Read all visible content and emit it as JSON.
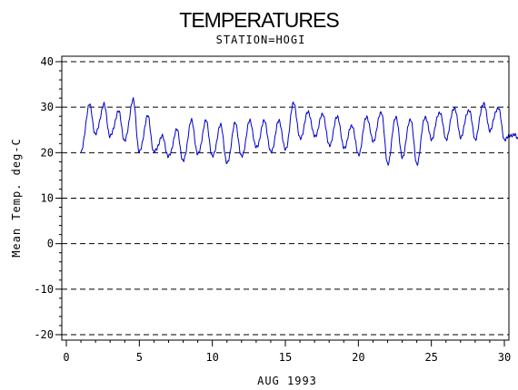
{
  "chart_data": {
    "type": "line",
    "title": "TEMPERATURES",
    "subtitle": "STATION=HOGI",
    "xlabel": "AUG 1993",
    "ylabel": "Mean Temp. deg-C",
    "xlim": [
      0,
      30
    ],
    "ylim": [
      -20,
      40
    ],
    "x_ticks": [
      "0",
      "5",
      "10",
      "15",
      "20",
      "25",
      "30"
    ],
    "y_ticks": [
      "-20",
      "-10",
      "0",
      "10",
      "20",
      "30",
      "40"
    ],
    "grid": "horizontal dashed",
    "series_color": "#0000cc",
    "daily": [
      {
        "day": 1,
        "min": 20,
        "max": 30.5
      },
      {
        "day": 2,
        "min": 24,
        "max": 30.5
      },
      {
        "day": 3,
        "min": 23.5,
        "max": 29
      },
      {
        "day": 4,
        "min": 22.5,
        "max": 31.5
      },
      {
        "day": 5,
        "min": 20,
        "max": 28
      },
      {
        "day": 6,
        "min": 20,
        "max": 23.5
      },
      {
        "day": 7,
        "min": 19,
        "max": 25
      },
      {
        "day": 8,
        "min": 18,
        "max": 27
      },
      {
        "day": 9,
        "min": 19.5,
        "max": 27
      },
      {
        "day": 10,
        "min": 19,
        "max": 26
      },
      {
        "day": 11,
        "min": 17.5,
        "max": 26.5
      },
      {
        "day": 12,
        "min": 19,
        "max": 27
      },
      {
        "day": 13,
        "min": 21,
        "max": 27
      },
      {
        "day": 14,
        "min": 20,
        "max": 27
      },
      {
        "day": 15,
        "min": 20.5,
        "max": 31
      },
      {
        "day": 16,
        "min": 23,
        "max": 29
      },
      {
        "day": 17,
        "min": 23.5,
        "max": 28.5
      },
      {
        "day": 18,
        "min": 21.5,
        "max": 28
      },
      {
        "day": 19,
        "min": 21,
        "max": 26
      },
      {
        "day": 20,
        "min": 19.5,
        "max": 28
      },
      {
        "day": 21,
        "min": 22.5,
        "max": 29
      },
      {
        "day": 22,
        "min": 17.5,
        "max": 28
      },
      {
        "day": 23,
        "min": 19,
        "max": 27.5
      },
      {
        "day": 24,
        "min": 17.5,
        "max": 28
      },
      {
        "day": 25,
        "min": 23,
        "max": 29
      },
      {
        "day": 26,
        "min": 23,
        "max": 30
      },
      {
        "day": 27,
        "min": 23.5,
        "max": 29.5
      },
      {
        "day": 28,
        "min": 23,
        "max": 31
      },
      {
        "day": 29,
        "min": 25,
        "max": 30
      },
      {
        "day": 30,
        "min": 23,
        "max": 24
      }
    ]
  }
}
